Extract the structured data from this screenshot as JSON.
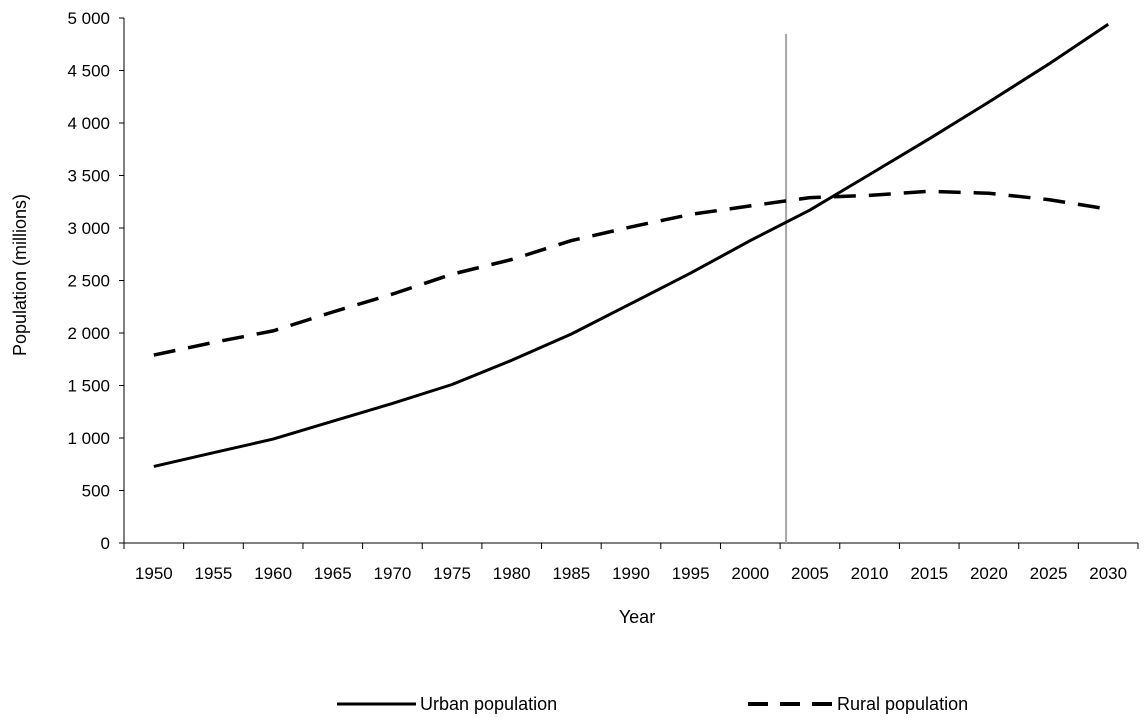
{
  "chart_data": {
    "type": "line",
    "title": "",
    "xlabel": "Year",
    "ylabel": "Population (millions)",
    "x": [
      1950,
      1955,
      1960,
      1965,
      1970,
      1975,
      1980,
      1985,
      1990,
      1995,
      2000,
      2005,
      2010,
      2015,
      2020,
      2025,
      2030
    ],
    "x_tick_labels": [
      "1950",
      "1955",
      "1960",
      "1965",
      "1970",
      "1975",
      "1980",
      "1985",
      "1990",
      "1995",
      "2000",
      "2005",
      "2010",
      "2015",
      "2020",
      "2025",
      "2030"
    ],
    "y_tick_values": [
      0,
      500,
      1000,
      1500,
      2000,
      2500,
      3000,
      3500,
      4000,
      4500,
      5000
    ],
    "y_tick_labels": [
      "0",
      "500",
      "1 000",
      "1 500",
      "2 000",
      "2 500",
      "3 000",
      "3 500",
      "4 000",
      "4 500",
      "5 000"
    ],
    "ylim": [
      0,
      5000
    ],
    "grid": false,
    "legend_position": "bottom",
    "reference_line": {
      "x": 2003,
      "color": "#a6a6a6"
    },
    "series": [
      {
        "name": "Urban population",
        "style": "solid",
        "color": "#000000",
        "values": [
          730,
          860,
          990,
          1160,
          1330,
          1510,
          1740,
          1990,
          2280,
          2570,
          2880,
          3170,
          3510,
          3850,
          4200,
          4560,
          4940
        ]
      },
      {
        "name": "Rural population",
        "style": "dashed",
        "color": "#000000",
        "values": [
          1790,
          1910,
          2020,
          2200,
          2370,
          2560,
          2700,
          2880,
          3010,
          3130,
          3210,
          3290,
          3310,
          3350,
          3330,
          3270,
          3180
        ]
      }
    ]
  }
}
